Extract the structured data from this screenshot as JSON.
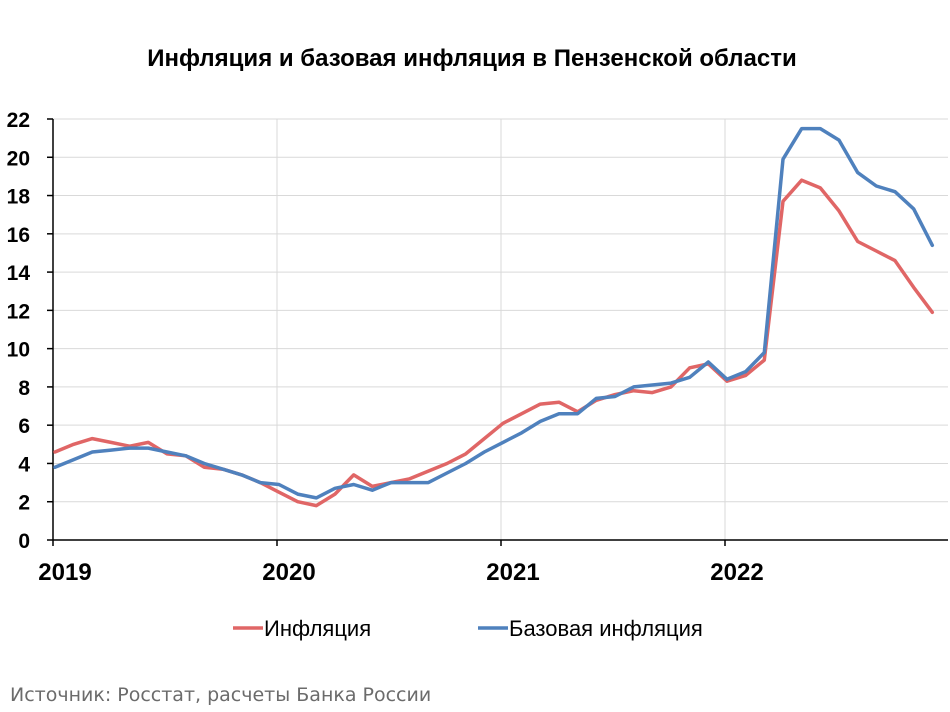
{
  "chart_data": {
    "type": "line",
    "title": "Инфляция и базовая инфляция в Пензенской области",
    "source": "Источник: Росстат, расчеты Банка России",
    "ylim": [
      0,
      22
    ],
    "yticks": [
      0,
      2,
      4,
      6,
      8,
      10,
      12,
      14,
      16,
      18,
      20,
      22
    ],
    "xticks": [
      "2019",
      "2020",
      "2021",
      "2022"
    ],
    "grid": true,
    "legend_position": "bottom",
    "x": [
      "2019-01",
      "2019-02",
      "2019-03",
      "2019-04",
      "2019-05",
      "2019-06",
      "2019-07",
      "2019-08",
      "2019-09",
      "2019-10",
      "2019-11",
      "2019-12",
      "2020-01",
      "2020-02",
      "2020-03",
      "2020-04",
      "2020-05",
      "2020-06",
      "2020-07",
      "2020-08",
      "2020-09",
      "2020-10",
      "2020-11",
      "2020-12",
      "2021-01",
      "2021-02",
      "2021-03",
      "2021-04",
      "2021-05",
      "2021-06",
      "2021-07",
      "2021-08",
      "2021-09",
      "2021-10",
      "2021-11",
      "2021-12",
      "2022-01",
      "2022-02",
      "2022-03",
      "2022-04",
      "2022-05",
      "2022-06",
      "2022-07",
      "2022-08",
      "2022-09",
      "2022-10",
      "2022-11",
      "2022-12"
    ],
    "series": [
      {
        "name": "Инфляция",
        "color": "#e06666",
        "values": [
          4.6,
          5.0,
          5.3,
          5.1,
          4.9,
          5.1,
          4.5,
          4.4,
          3.8,
          3.7,
          3.4,
          3.0,
          2.5,
          2.0,
          1.8,
          2.4,
          3.4,
          2.8,
          3.0,
          3.2,
          3.6,
          4.0,
          4.5,
          5.3,
          6.1,
          6.6,
          7.1,
          7.2,
          6.7,
          7.3,
          7.6,
          7.8,
          7.7,
          8.0,
          9.0,
          9.2,
          8.3,
          8.6,
          9.4,
          17.7,
          18.8,
          18.4,
          17.2,
          15.6,
          15.1,
          14.6,
          13.2,
          11.9
        ]
      },
      {
        "name": "Базовая инфляция",
        "color": "#4f81bd",
        "values": [
          3.8,
          4.2,
          4.6,
          4.7,
          4.8,
          4.8,
          4.6,
          4.4,
          4.0,
          3.7,
          3.4,
          3.0,
          2.9,
          2.4,
          2.2,
          2.7,
          2.9,
          2.6,
          3.0,
          3.0,
          3.0,
          3.5,
          4.0,
          4.6,
          5.1,
          5.6,
          6.2,
          6.6,
          6.6,
          7.4,
          7.5,
          8.0,
          8.1,
          8.2,
          8.5,
          9.3,
          8.4,
          8.8,
          9.8,
          19.9,
          21.5,
          21.5,
          20.9,
          19.2,
          18.5,
          18.2,
          17.3,
          15.4
        ]
      }
    ]
  }
}
